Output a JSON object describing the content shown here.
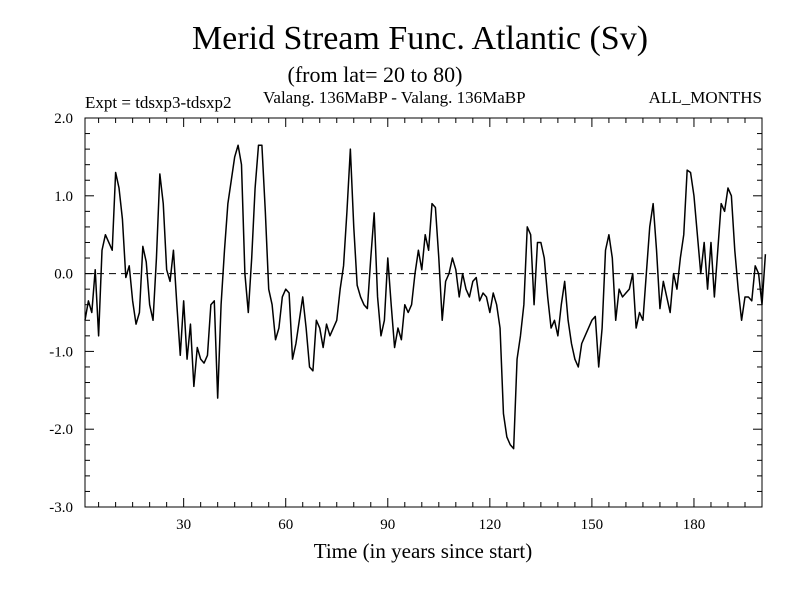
{
  "chart_data": {
    "type": "line",
    "title": "Merid Stream Func. Atlantic (Sv)",
    "subtitle": "(from lat= 20 to 80)",
    "expt_label": "Expt = tdsxp3-tdsxp2",
    "comparison_label": "Valang. 136MaBP - Valang. 136MaBP",
    "period_label": "ALL_MONTHS",
    "xlabel": "Time (in years since start)",
    "ylabel": "",
    "xlim": [
      1,
      200
    ],
    "ylim": [
      -3.0,
      2.0
    ],
    "x_ticks": [
      30,
      60,
      90,
      120,
      150,
      180
    ],
    "x_tick_labels": [
      "30",
      "60",
      "90",
      "120",
      "150",
      "180"
    ],
    "y_ticks": [
      2.0,
      1.0,
      0.0,
      -1.0,
      -2.0,
      -3.0
    ],
    "y_tick_labels": [
      "2.0",
      "1.0",
      "0.0",
      "-1.0",
      "-2.0",
      "-3.0"
    ],
    "reference_line": 0.0,
    "grid": false,
    "series": [
      {
        "name": "tdsxp3-tdsxp2",
        "color": "#000000",
        "x_start": 1,
        "x_step": 1,
        "values": [
          -0.6,
          -0.35,
          -0.5,
          0.05,
          -0.8,
          0.3,
          0.5,
          0.4,
          0.3,
          1.3,
          1.1,
          0.7,
          -0.05,
          0.1,
          -0.35,
          -0.65,
          -0.5,
          0.35,
          0.15,
          -0.4,
          -0.6,
          0.2,
          1.28,
          0.9,
          0.05,
          -0.1,
          0.3,
          -0.4,
          -1.05,
          -0.35,
          -1.1,
          -0.65,
          -1.45,
          -0.95,
          -1.1,
          -1.15,
          -1.05,
          -0.4,
          -0.35,
          -1.6,
          -0.4,
          0.3,
          0.9,
          1.2,
          1.5,
          1.65,
          1.4,
          0.0,
          -0.5,
          0.2,
          1.1,
          1.65,
          1.65,
          0.8,
          -0.2,
          -0.4,
          -0.85,
          -0.7,
          -0.3,
          -0.2,
          -0.25,
          -1.1,
          -0.9,
          -0.6,
          -0.3,
          -0.7,
          -1.2,
          -1.25,
          -0.6,
          -0.7,
          -0.95,
          -0.65,
          -0.8,
          -0.7,
          -0.6,
          -0.2,
          0.1,
          0.8,
          1.6,
          0.6,
          -0.15,
          -0.3,
          -0.4,
          -0.45,
          0.2,
          0.78,
          -0.3,
          -0.8,
          -0.6,
          0.2,
          -0.4,
          -0.95,
          -0.7,
          -0.85,
          -0.4,
          -0.5,
          -0.4,
          0.0,
          0.3,
          0.05,
          0.5,
          0.3,
          0.9,
          0.85,
          0.2,
          -0.6,
          -0.1,
          0.0,
          0.2,
          0.05,
          -0.3,
          0.0,
          -0.2,
          -0.3,
          -0.1,
          -0.05,
          -0.35,
          -0.25,
          -0.3,
          -0.5,
          -0.25,
          -0.4,
          -0.7,
          -1.8,
          -2.1,
          -2.2,
          -2.25,
          -1.1,
          -0.8,
          -0.4,
          0.6,
          0.5,
          -0.4,
          0.4,
          0.4,
          0.2,
          -0.3,
          -0.7,
          -0.6,
          -0.8,
          -0.4,
          -0.1,
          -0.6,
          -0.9,
          -1.1,
          -1.2,
          -0.9,
          -0.8,
          -0.7,
          -0.6,
          -0.55,
          -1.2,
          -0.7,
          0.3,
          0.5,
          0.2,
          -0.6,
          -0.2,
          -0.3,
          -0.25,
          -0.2,
          0.0,
          -0.7,
          -0.5,
          -0.6,
          0.0,
          0.6,
          0.9,
          0.3,
          -0.45,
          -0.1,
          -0.3,
          -0.5,
          0.0,
          -0.2,
          0.2,
          0.5,
          1.33,
          1.3,
          1.0,
          0.5,
          0.0,
          0.4,
          -0.2,
          0.4,
          -0.3,
          0.3,
          0.9,
          0.8,
          1.1,
          1.0,
          0.3,
          -0.2,
          -0.6,
          -0.3,
          -0.3,
          -0.35,
          0.1,
          0.0,
          -0.4,
          0.25
        ]
      }
    ]
  }
}
